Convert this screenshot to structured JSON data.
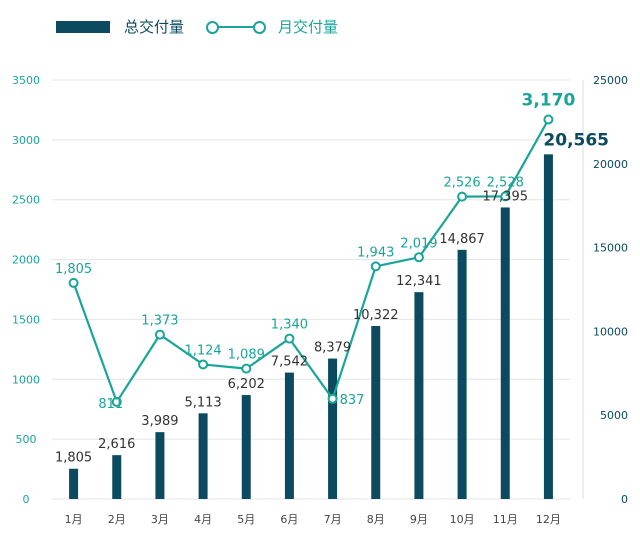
{
  "legend": {
    "bar_label": "总交付量",
    "line_label": "月交付量"
  },
  "colors": {
    "bar": "#0b4a5f",
    "line": "#1aa59a",
    "left_axis": "#1aa59a",
    "right_axis": "#0b4a5f",
    "grid": "#e5e5e5"
  },
  "chart_data": {
    "type": "bar",
    "categories": [
      "1月",
      "2月",
      "3月",
      "4月",
      "5月",
      "6月",
      "7月",
      "8月",
      "9月",
      "10月",
      "11月",
      "12月"
    ],
    "series": [
      {
        "name": "总交付量",
        "type": "bar",
        "axis": "right",
        "values": [
          1805,
          2616,
          3989,
          5113,
          6202,
          7542,
          8379,
          10322,
          12341,
          14867,
          17395,
          20565
        ],
        "labels": [
          "1,805",
          "2,616",
          "3,989",
          "5,113",
          "6,202",
          "7,542",
          "8,379",
          "10,322",
          "12,341",
          "14,867",
          "17,395",
          "20,565"
        ]
      },
      {
        "name": "月交付量",
        "type": "line",
        "axis": "left",
        "values": [
          1805,
          811,
          1373,
          1124,
          1089,
          1340,
          837,
          1943,
          2019,
          2526,
          2528,
          3170
        ],
        "labels": [
          "1,805",
          "811",
          "1,373",
          "1,124",
          "1,089",
          "1,340",
          "837",
          "1,943",
          "2,019",
          "2,526",
          "2,528",
          "3,170"
        ]
      }
    ],
    "left_axis": {
      "ylim": [
        0,
        3500
      ],
      "ticks": [
        "0",
        "500",
        "1000",
        "1500",
        "2000",
        "2500",
        "3000",
        "3500"
      ]
    },
    "right_axis": {
      "ylim": [
        0,
        25000
      ],
      "ticks": [
        "0",
        "5000",
        "10000",
        "15000",
        "20000",
        "25000"
      ]
    },
    "grid": true,
    "legend_position": "top-left"
  }
}
